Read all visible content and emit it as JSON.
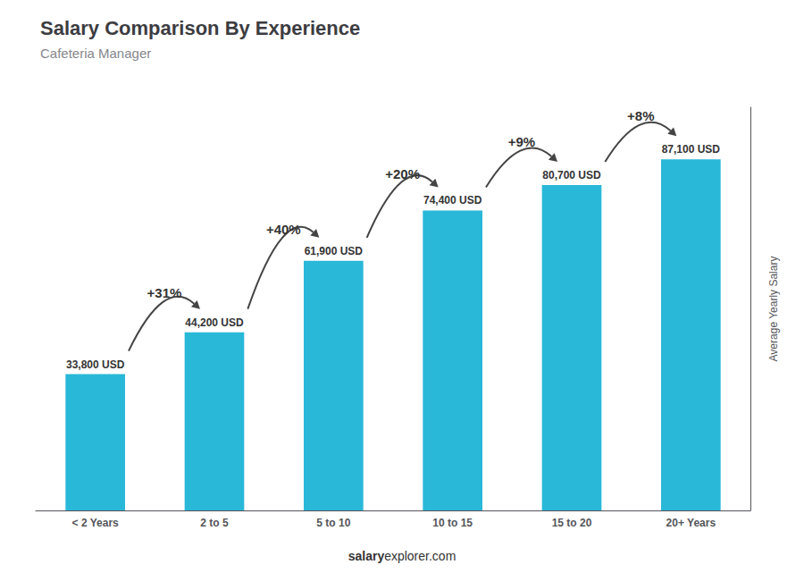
{
  "chart_data": {
    "type": "bar",
    "title": "Salary Comparison By Experience",
    "subtitle": "Cafeteria Manager",
    "categories": [
      "< 2 Years",
      "2 to 5",
      "5 to 10",
      "10 to 15",
      "15 to 20",
      "20+ Years"
    ],
    "values": [
      33800,
      44200,
      61900,
      74400,
      80700,
      87100
    ],
    "value_labels": [
      "33,800 USD",
      "44,200 USD",
      "61,900 USD",
      "74,400 USD",
      "80,700 USD",
      "87,100 USD"
    ],
    "data_labels": true,
    "color": "#29b8d8",
    "ylabel": "Average Yearly Salary",
    "ylim": [
      0,
      100000
    ],
    "tick_labels": "x",
    "grid": false,
    "annotations": [
      {
        "text": "+31%",
        "from": "< 2 Years",
        "to": "2 to 5"
      },
      {
        "text": "+40%",
        "from": "2 to 5",
        "to": "5 to 10"
      },
      {
        "text": "+20%",
        "from": "5 to 10",
        "to": "10 to 15"
      },
      {
        "text": "+9%",
        "from": "10 to 15",
        "to": "15 to 20"
      },
      {
        "text": "+8%",
        "from": "15 to 20",
        "to": "20+ Years"
      }
    ],
    "footer": [
      "salary",
      "explorer.com"
    ]
  }
}
